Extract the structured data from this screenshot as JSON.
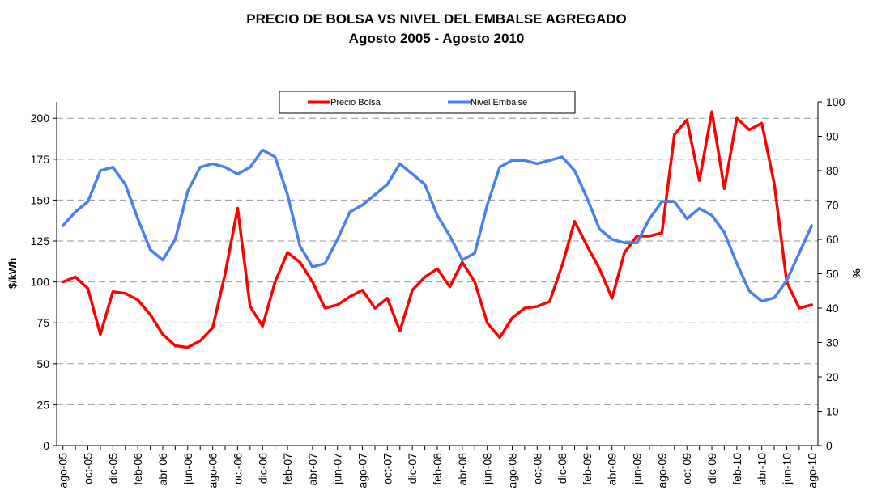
{
  "chart_data": {
    "type": "line",
    "title": "PRECIO DE BOLSA VS NIVEL DEL EMBALSE AGREGADO",
    "subtitle": "Agosto 2005 - Agosto 2010",
    "y_label": "$/kWh",
    "y2_label": "%",
    "categories": [
      "ago-05",
      null,
      "oct-05",
      null,
      "dic-05",
      null,
      "feb-06",
      null,
      "abr-06",
      null,
      "jun-06",
      null,
      "ago-06",
      null,
      "oct-06",
      null,
      "dic-06",
      null,
      "feb-07",
      null,
      "abr-07",
      null,
      "jun-07",
      null,
      "ago-07",
      null,
      "oct-07",
      null,
      "dic-07",
      null,
      "feb-08",
      null,
      "abr-08",
      null,
      "jun-08",
      null,
      "ago-08",
      null,
      "oct-08",
      null,
      "dic-08",
      null,
      "feb-09",
      null,
      "abr-09",
      null,
      "jun-09",
      null,
      "ago-09",
      null,
      "oct-09",
      null,
      "dic-09",
      null,
      "feb-10",
      null,
      "abr-10",
      null,
      "jun-10",
      null,
      "ago-10"
    ],
    "series": [
      {
        "name": "Precio Bolsa",
        "color": "#ff0000",
        "axis": "y",
        "values": [
          100,
          103,
          96,
          68,
          94,
          93,
          89,
          80,
          68,
          61,
          60,
          64,
          72,
          105,
          145,
          85,
          73,
          100,
          118,
          112,
          100,
          84,
          86,
          91,
          95,
          84,
          90,
          70,
          95,
          103,
          108,
          97,
          112,
          100,
          75,
          66,
          78,
          84,
          85,
          88,
          110,
          137,
          122,
          108,
          90,
          118,
          128,
          128,
          130,
          190,
          199,
          162,
          204,
          157,
          200,
          193,
          197,
          160,
          100,
          84,
          86
        ]
      },
      {
        "name": "Nivel Embalse",
        "color": "#4a7ff0",
        "axis": "y2",
        "values": [
          64,
          68,
          71,
          80,
          81,
          76,
          66,
          57,
          54,
          60,
          74,
          81,
          82,
          81,
          79,
          81,
          86,
          84,
          73,
          58,
          52,
          53,
          60,
          68,
          70,
          73,
          76,
          82,
          79,
          76,
          67,
          61,
          54,
          56,
          70,
          81,
          83,
          83,
          82,
          83,
          84,
          80,
          72,
          63,
          60,
          59,
          59,
          66,
          71,
          71,
          66,
          69,
          67,
          62,
          53,
          45,
          42,
          43,
          48,
          56,
          64
        ]
      }
    ],
    "ylim": [
      0,
      210
    ],
    "yticks": [
      0,
      25,
      50,
      75,
      100,
      125,
      150,
      175,
      200
    ],
    "y2lim": [
      0,
      100
    ],
    "y2ticks": [
      0,
      10,
      20,
      30,
      40,
      50,
      60,
      70,
      80,
      90,
      100
    ],
    "grid": true
  }
}
